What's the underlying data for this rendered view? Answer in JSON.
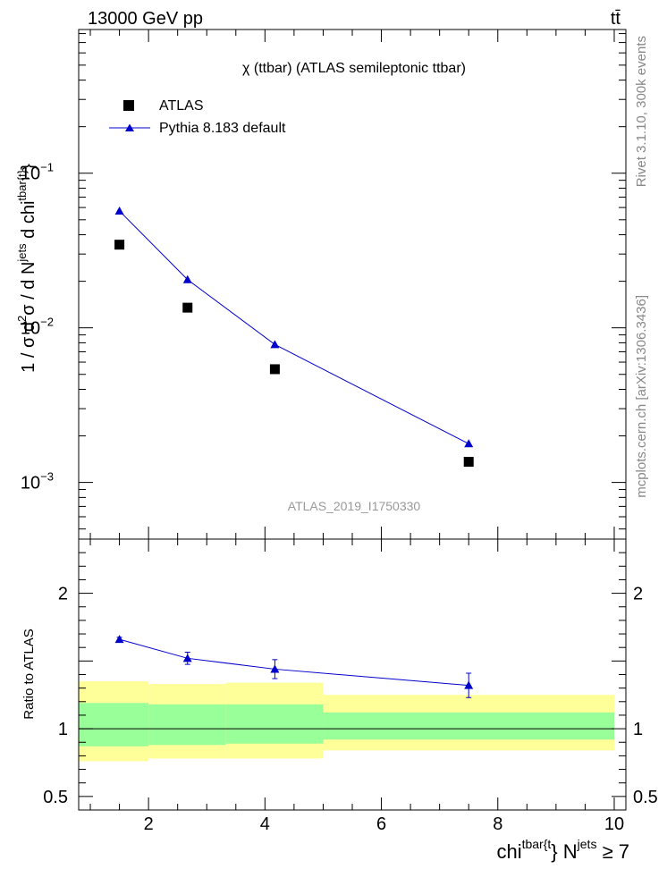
{
  "header": {
    "beam_label": "13000 GeV pp",
    "process_label": "tt̄"
  },
  "side_labels": {
    "rivet": "Rivet 3.1.10,  300k events",
    "mcplots": "mcplots.cern.ch [arXiv:1306.3436]"
  },
  "colors": {
    "mc": "#0000cc",
    "band_outer": "#ffff99",
    "band_inner": "#99ff99",
    "data": "#000000",
    "watermark": "#999999",
    "side_text": "#888888"
  },
  "chart_data": [
    {
      "type": "scatter",
      "panel": "main",
      "title": "χ (ttbar) (ATLAS semileptonic ttbar)",
      "analysis_id": "ATLAS_2019_I1750330",
      "ylabel": {
        "base": "1 / σ d",
        "sup1": "2",
        "mid": "σ / d N",
        "sup2": "jets",
        "mid2": " d chi",
        "sup3": "tbar{t}",
        "tail": "}"
      },
      "yscale": "log",
      "ylim": [
        0.00043,
        0.85
      ],
      "xlim": [
        0.8,
        10.2
      ],
      "yticks": [
        {
          "value": 0.1,
          "base": "10",
          "exp": "−1"
        },
        {
          "value": 0.01,
          "base": "10",
          "exp": "−2"
        },
        {
          "value": 0.001,
          "base": "10",
          "exp": "−3"
        }
      ],
      "legend": {
        "position": "top-left",
        "data_label": "ATLAS",
        "mc_label": "Pythia 8.183 default"
      },
      "series": [
        {
          "name": "ATLAS",
          "style": "square",
          "points": [
            {
              "x": 1.5,
              "y": 0.0345
            },
            {
              "x": 2.67,
              "y": 0.0135
            },
            {
              "x": 4.17,
              "y": 0.0054
            },
            {
              "x": 7.5,
              "y": 0.00136
            }
          ]
        },
        {
          "name": "Pythia 8.183 default",
          "style": "line-triangle",
          "points": [
            {
              "x": 1.5,
              "y": 0.057
            },
            {
              "x": 2.67,
              "y": 0.0205
            },
            {
              "x": 4.17,
              "y": 0.0078
            },
            {
              "x": 7.5,
              "y": 0.00178
            }
          ]
        }
      ]
    },
    {
      "type": "line",
      "panel": "ratio",
      "ylabel": "Ratio to ATLAS",
      "xlabel": {
        "base": "chi",
        "sup1": "tbar{t",
        "mid": "} N",
        "sup2": "jets",
        "tail": " ≥ 7"
      },
      "ylim": [
        0.4,
        2.4
      ],
      "xlim": [
        0.8,
        10.2
      ],
      "yscale": "linear",
      "xticks": [
        {
          "value": 2,
          "label": "2"
        },
        {
          "value": 4,
          "label": "4"
        },
        {
          "value": 6,
          "label": "6"
        },
        {
          "value": 8,
          "label": "8"
        },
        {
          "value": 10,
          "label": "10"
        }
      ],
      "yticks": [
        {
          "value": 2,
          "label": "2"
        },
        {
          "value": 1,
          "label": "1"
        },
        {
          "value": 0.5,
          "label": "0.5"
        }
      ],
      "bands": [
        {
          "x0": 0.8,
          "x1": 2.0,
          "outer": [
            0.76,
            1.35
          ],
          "inner": [
            0.87,
            1.19
          ]
        },
        {
          "x0": 2.0,
          "x1": 3.33,
          "outer": [
            0.78,
            1.33
          ],
          "inner": [
            0.88,
            1.18
          ]
        },
        {
          "x0": 3.33,
          "x1": 5.0,
          "outer": [
            0.78,
            1.34
          ],
          "inner": [
            0.89,
            1.18
          ]
        },
        {
          "x0": 5.0,
          "x1": 10.0,
          "outer": [
            0.84,
            1.25
          ],
          "inner": [
            0.92,
            1.12
          ]
        }
      ],
      "series": [
        {
          "name": "Pythia 8.183 default",
          "points": [
            {
              "x": 1.5,
              "y": 1.66,
              "err": 0.015
            },
            {
              "x": 2.67,
              "y": 1.52,
              "err": 0.045
            },
            {
              "x": 4.17,
              "y": 1.44,
              "err": 0.07
            },
            {
              "x": 7.5,
              "y": 1.32,
              "err": 0.09
            }
          ]
        }
      ]
    }
  ]
}
